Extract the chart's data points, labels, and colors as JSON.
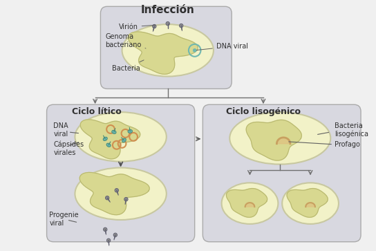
{
  "bg_color": "#f0f0f0",
  "box_color": "#d8d8e0",
  "cell_fc": "#f2f2c8",
  "cell_ec": "#c8c8a0",
  "nucleus_fc": "#e8e8b0",
  "nucleus_ec": "#c8c8a0",
  "chrom_fc": "#d8d890",
  "chrom_ec": "#b8b870",
  "teal_color": "#70b8b0",
  "teal_ec": "#408878",
  "orange_color": "#d09050",
  "gray_virus": "#909090",
  "gray_virus_ec": "#606070",
  "arrow_color": "#606060",
  "text_color": "#303030",
  "title_infeccion": "Infección",
  "title_litico": "Ciclo lítico",
  "title_lisogenico": "Ciclo lisogénico",
  "label_virion": "Virión",
  "label_genoma": "Genoma\nbacteriano",
  "label_bacteria": "Bacteria",
  "label_dna_viral_top": "DNA viral",
  "label_dna_viral2": "DNA\nviral",
  "label_capsides": "Cápsides\nvirales",
  "label_progenie": "Progenie\nviral",
  "label_bacteria_lisogenica": "Bacteria\nlisogénica",
  "label_profago": "Profago"
}
